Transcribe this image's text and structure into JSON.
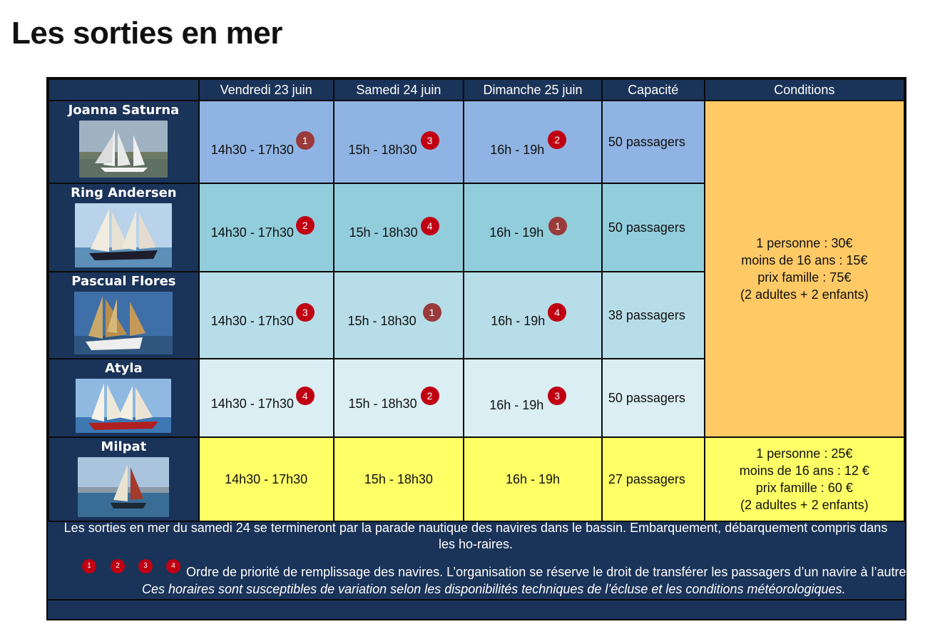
{
  "title": "Les sorties en mer",
  "columns": [
    "Vendredi 23 juin",
    "Samedi 24 juin",
    "Dimanche 25 juin",
    "Capacité",
    "Conditions"
  ],
  "ships": [
    {
      "name": "Joanna Saturna",
      "times": [
        "14h30 - 17h30",
        "15h - 18h30",
        "16h - 19h"
      ],
      "priorities": [
        "1",
        "3",
        "2"
      ],
      "capacity": "50 passagers"
    },
    {
      "name": "Ring Andersen",
      "times": [
        "14h30 - 17h30",
        "15h - 18h30",
        "16h - 19h"
      ],
      "priorities": [
        "2",
        "4",
        "1"
      ],
      "capacity": "50 passagers"
    },
    {
      "name": "Pascual Flores",
      "times": [
        "14h30 - 17h30",
        "15h - 18h30",
        "16h - 19h"
      ],
      "priorities": [
        "3",
        "1",
        "4"
      ],
      "capacity": "38 passagers"
    },
    {
      "name": "Atyla",
      "times": [
        "14h30 - 17h30",
        "15h - 18h30",
        "16h - 19h"
      ],
      "priorities": [
        "4",
        "2",
        "3"
      ],
      "capacity": "50 passagers"
    },
    {
      "name": "Milpat",
      "times": [
        "14h30 - 17h30",
        "15h - 18h30",
        "16h - 19h"
      ],
      "priorities": [],
      "capacity": "27 passagers"
    }
  ],
  "conditions_main": [
    "1 personne : 30€",
    "moins de 16 ans : 15€",
    "prix famille : 75€",
    "(2 adultes + 2 enfants)"
  ],
  "conditions_milpat": [
    "1 personne : 25€",
    "moins de 16 ans : 12 €",
    "prix famille : 60 €",
    "(2 adultes + 2 enfants)"
  ],
  "notes": {
    "parade": "Les sorties en mer du samedi 24 se termineront par la parade nautique des navires dans le bassin. Embarquement, débarquement compris dans les ho-raires.",
    "legend_badges": [
      "1",
      "2",
      "3",
      "4"
    ],
    "priority": "Ordre de priorité de remplissage des navires. L’organisation se réserve le droit de transférer les passagers d’un navire à l’autre.",
    "disclaimer": "Ces horaires sont susceptibles de variation selon les disponibilités techniques de l’écluse et les conditions météorologiques."
  },
  "colors": {
    "navy": "#1a3358",
    "row1": "#8fb4e3",
    "row2": "#92cddc",
    "row3": "#b7dde8",
    "row4": "#daeef3",
    "row5": "#ffff66",
    "conditions": "#ffc966",
    "badge": "#c00012"
  }
}
